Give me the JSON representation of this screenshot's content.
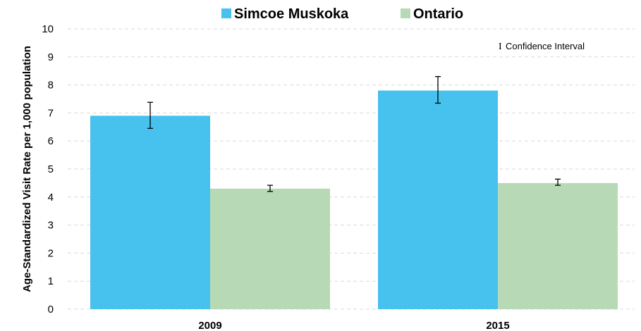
{
  "chart_data": {
    "type": "bar",
    "categories": [
      "2009",
      "2015"
    ],
    "series": [
      {
        "name": "Simcoe Muskoka",
        "color": "#47c1ee",
        "values": [
          6.9,
          7.8
        ],
        "ci_low": [
          6.45,
          7.35
        ],
        "ci_high": [
          7.38,
          8.3
        ]
      },
      {
        "name": "Ontario",
        "color": "#b8d9b5",
        "values": [
          4.3,
          4.5
        ],
        "ci_low": [
          4.2,
          4.42
        ],
        "ci_high": [
          4.42,
          4.64
        ]
      }
    ],
    "ylabel": "Age-Standardized Visit Rate per 1,000 population",
    "ylim": [
      0,
      10
    ],
    "yticks": [
      0,
      1,
      2,
      3,
      4,
      5,
      6,
      7,
      8,
      9,
      10
    ],
    "grid": true,
    "legend_position": "top",
    "ci_legend": "Confidence Interval",
    "ci_glyph": "I"
  }
}
